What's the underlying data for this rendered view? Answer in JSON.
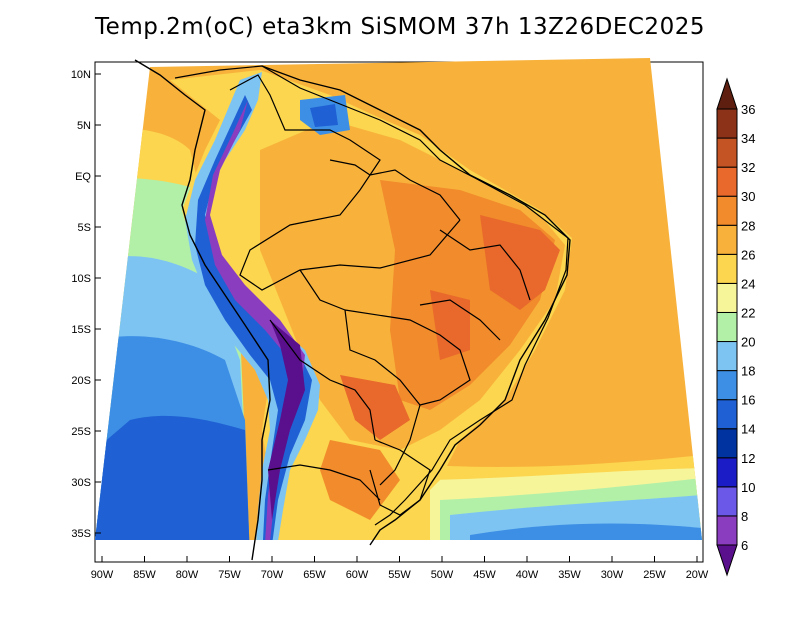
{
  "title": "Temp.2m(oC) eta3km SiSMOM 37h 13Z26DEC2025",
  "map": {
    "lat_labels": [
      "10N",
      "5N",
      "EQ",
      "5S",
      "10S",
      "15S",
      "20S",
      "25S",
      "30S",
      "35S"
    ],
    "lon_labels": [
      "90W",
      "85W",
      "80W",
      "75W",
      "70W",
      "65W",
      "60W",
      "55W",
      "50W",
      "45W",
      "40W",
      "35W",
      "30W",
      "25W",
      "20W"
    ],
    "lat_range": [
      -37,
      11
    ],
    "lon_range": [
      -91,
      -20
    ]
  },
  "colorbar": {
    "labels": [
      "6",
      "8",
      "10",
      "12",
      "14",
      "16",
      "18",
      "20",
      "22",
      "24",
      "26",
      "28",
      "30",
      "32",
      "34",
      "36"
    ],
    "colors": [
      "#5a0f8c",
      "#8b3dbf",
      "#6b58e8",
      "#1c1cc6",
      "#0033a0",
      "#1f61d4",
      "#3d8fe5",
      "#7ec4f2",
      "#b2f0a8",
      "#f7f59a",
      "#fbd64e",
      "#f8b23b",
      "#f18b2b",
      "#e8692b",
      "#c55424",
      "#8b3218",
      "#5e1f10"
    ],
    "unit": "oC"
  }
}
